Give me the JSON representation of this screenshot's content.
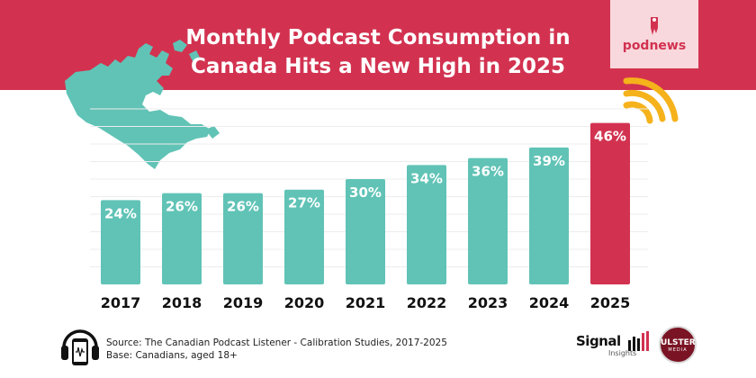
{
  "title_lines": [
    "Monthly Podcast Consumption in",
    "Canada Hits a New High in 2025"
  ],
  "brand": {
    "name": "podnews",
    "color": "#d23250"
  },
  "colors": {
    "banner": "#d23250",
    "bar_default": "#60c3b6",
    "bar_highlight": "#d23250",
    "map": "#60c3b6",
    "wifi": "#f5b21b"
  },
  "chart_data": {
    "type": "bar",
    "title": "Monthly Podcast Consumption in Canada Hits a New High in 2025",
    "categories": [
      "2017",
      "2018",
      "2019",
      "2020",
      "2021",
      "2022",
      "2023",
      "2024",
      "2025"
    ],
    "values": [
      24,
      26,
      26,
      27,
      30,
      34,
      36,
      39,
      46
    ],
    "data_labels": [
      "24%",
      "26%",
      "26%",
      "27%",
      "30%",
      "34%",
      "36%",
      "39%",
      "46%"
    ],
    "highlight_category": "2025",
    "xlabel": "",
    "ylabel": "",
    "ylim": [
      0,
      50
    ]
  },
  "footer": {
    "source": "Source: The Canadian Podcast Listener - Calibration Studies, 2017-2025",
    "base": "Base: Canadians, aged 18+"
  },
  "logos": {
    "signal_name": "Signal",
    "signal_sub": "Insights",
    "ulster_name": "ULSTER",
    "ulster_sub": "MEDIA"
  }
}
